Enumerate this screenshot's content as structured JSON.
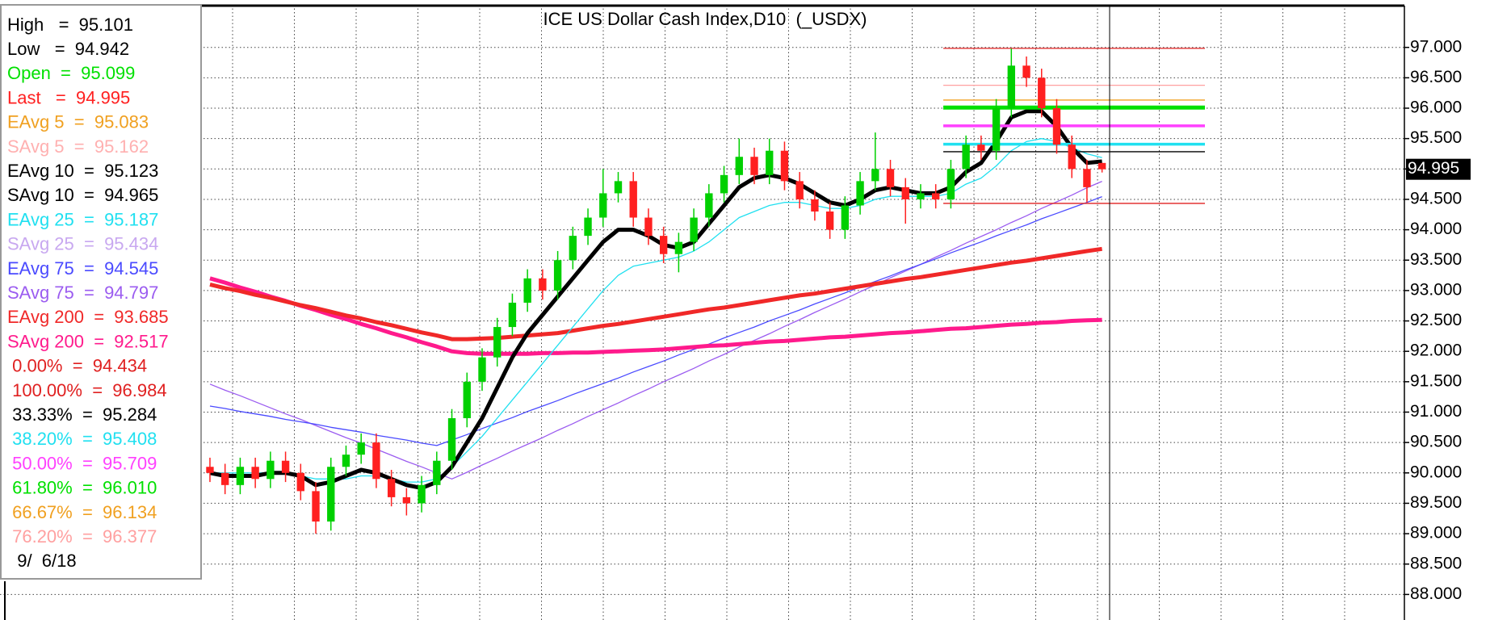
{
  "chart_data": {
    "type": "candlestick",
    "title": "ICE US Dollar Cash Index,D10  (_USDX)",
    "categories": [
      null,
      null,
      null,
      null,
      null,
      null,
      null,
      null,
      null,
      null,
      null,
      null,
      null,
      null,
      null,
      null,
      null,
      null,
      null,
      null,
      null,
      null,
      null,
      null,
      null,
      null,
      null,
      null,
      null,
      null,
      null,
      null,
      null,
      null,
      null,
      null,
      null,
      null,
      null,
      null,
      null,
      null,
      null,
      null,
      null,
      null,
      null,
      null,
      null,
      null,
      null,
      null,
      null,
      null,
      null,
      null,
      null,
      null,
      null,
      null
    ],
    "open": [
      90.1,
      90.0,
      89.8,
      90.1,
      89.9,
      90.2,
      90.0,
      89.7,
      89.2,
      90.1,
      90.3,
      90.5,
      89.9,
      89.6,
      89.5,
      89.8,
      90.2,
      90.9,
      91.5,
      91.9,
      92.4,
      92.8,
      93.2,
      93.0,
      93.5,
      93.9,
      94.2,
      94.6,
      94.8,
      94.2,
      93.9,
      93.6,
      93.8,
      94.2,
      94.6,
      94.9,
      95.2,
      94.9,
      95.3,
      94.8,
      94.5,
      94.3,
      94.0,
      94.4,
      94.8,
      95.0,
      94.7,
      94.5,
      94.6,
      94.5,
      95.0,
      95.4,
      95.3,
      96.0,
      96.7,
      96.5,
      96.0,
      95.4,
      95.0,
      95.099
    ],
    "high": [
      90.25,
      90.15,
      90.25,
      90.25,
      90.35,
      90.35,
      90.15,
      89.85,
      90.25,
      90.45,
      90.65,
      90.65,
      90.05,
      89.75,
      89.95,
      90.35,
      91.05,
      91.65,
      92.05,
      92.55,
      92.95,
      93.35,
      93.35,
      93.65,
      94.05,
      94.35,
      95.0,
      94.95,
      94.95,
      94.35,
      94.05,
      93.95,
      94.35,
      94.75,
      95.05,
      95.5,
      95.35,
      95.5,
      95.45,
      94.95,
      94.65,
      94.45,
      94.55,
      94.95,
      95.6,
      95.15,
      94.85,
      94.75,
      94.75,
      95.15,
      95.55,
      95.55,
      96.15,
      96.98,
      96.85,
      96.65,
      96.15,
      95.55,
      95.15,
      95.101
    ],
    "low": [
      89.85,
      89.65,
      89.65,
      89.75,
      89.75,
      89.85,
      89.55,
      89.0,
      89.05,
      89.95,
      90.15,
      89.75,
      89.45,
      89.3,
      89.35,
      89.65,
      90.05,
      90.75,
      91.35,
      91.75,
      92.25,
      92.65,
      92.85,
      92.85,
      93.35,
      93.75,
      94.05,
      94.45,
      94.05,
      93.75,
      93.45,
      93.3,
      93.65,
      94.05,
      94.45,
      94.75,
      94.75,
      94.75,
      94.65,
      94.35,
      94.15,
      93.85,
      93.85,
      94.25,
      94.65,
      94.55,
      94.1,
      94.35,
      94.35,
      94.35,
      94.85,
      95.15,
      95.15,
      95.85,
      96.35,
      95.85,
      95.25,
      94.85,
      94.45,
      94.942
    ],
    "close": [
      90.0,
      89.8,
      90.1,
      89.9,
      90.2,
      90.0,
      89.7,
      89.2,
      90.1,
      90.3,
      90.5,
      89.9,
      89.6,
      89.5,
      89.8,
      90.2,
      90.9,
      91.5,
      91.9,
      92.4,
      92.8,
      93.2,
      93.0,
      93.5,
      93.9,
      94.2,
      94.6,
      94.8,
      94.2,
      93.9,
      93.6,
      93.8,
      94.2,
      94.6,
      94.9,
      95.2,
      94.9,
      95.3,
      94.8,
      94.5,
      94.3,
      94.0,
      94.4,
      94.8,
      95.0,
      94.7,
      94.5,
      94.6,
      94.5,
      95.0,
      95.4,
      95.3,
      96.0,
      96.7,
      96.5,
      96.0,
      95.4,
      95.0,
      94.7,
      94.995
    ],
    "up_color": "#00d000",
    "down_color": "#ff2020",
    "series": [
      {
        "color": "#9b5cf0",
        "line_width": "thin",
        "values": [
          91.46,
          91.36,
          91.27,
          91.17,
          91.07,
          90.97,
          90.88,
          90.78,
          90.68,
          90.58,
          90.49,
          90.39,
          90.29,
          90.19,
          90.1,
          90.0,
          89.9,
          90.01,
          90.13,
          90.24,
          90.36,
          90.47,
          90.58,
          90.7,
          90.81,
          90.93,
          91.04,
          91.15,
          91.27,
          91.38,
          91.5,
          91.61,
          91.72,
          91.84,
          91.95,
          92.07,
          92.18,
          92.29,
          92.41,
          92.52,
          92.64,
          92.75,
          92.86,
          92.98,
          93.09,
          93.21,
          93.32,
          93.43,
          93.55,
          93.66,
          93.78,
          93.89,
          94.0,
          94.12,
          94.23,
          94.35,
          94.46,
          94.57,
          94.69,
          94.797
        ]
      },
      {
        "color": "#4a4aff",
        "line_width": "thin",
        "values": [
          91.1,
          91.06,
          91.01,
          90.97,
          90.93,
          90.88,
          90.84,
          90.8,
          90.75,
          90.71,
          90.67,
          90.62,
          90.58,
          90.54,
          90.49,
          90.45,
          90.54,
          90.63,
          90.73,
          90.82,
          90.91,
          91.01,
          91.1,
          91.19,
          91.29,
          91.38,
          91.47,
          91.56,
          91.66,
          91.75,
          91.84,
          91.94,
          92.03,
          92.12,
          92.22,
          92.31,
          92.4,
          92.5,
          92.59,
          92.68,
          92.78,
          92.87,
          92.96,
          93.06,
          93.15,
          93.24,
          93.34,
          93.43,
          93.52,
          93.62,
          93.71,
          93.8,
          93.9,
          93.99,
          94.08,
          94.18,
          94.27,
          94.36,
          94.45,
          94.545
        ]
      },
      {
        "color": "#ff1a8c",
        "line_width": "heavy",
        "values": [
          93.2,
          93.13,
          93.05,
          92.98,
          92.9,
          92.83,
          92.75,
          92.68,
          92.6,
          92.53,
          92.45,
          92.38,
          92.3,
          92.23,
          92.15,
          92.08,
          92.0,
          91.97,
          91.96,
          91.96,
          91.96,
          91.96,
          91.97,
          91.97,
          91.98,
          91.98,
          91.99,
          92.0,
          92.01,
          92.02,
          92.03,
          92.05,
          92.07,
          92.09,
          92.1,
          92.12,
          92.14,
          92.16,
          92.17,
          92.19,
          92.21,
          92.23,
          92.24,
          92.26,
          92.28,
          92.3,
          92.31,
          92.33,
          92.35,
          92.37,
          92.38,
          92.4,
          92.42,
          92.44,
          92.45,
          92.47,
          92.48,
          92.5,
          92.51,
          92.517
        ]
      },
      {
        "color": "#f02828",
        "line_width": "heavy",
        "values": [
          93.1,
          93.04,
          92.99,
          92.93,
          92.88,
          92.82,
          92.76,
          92.71,
          92.65,
          92.59,
          92.54,
          92.48,
          92.43,
          92.37,
          92.31,
          92.26,
          92.2,
          92.2,
          92.21,
          92.22,
          92.24,
          92.26,
          92.28,
          92.3,
          92.34,
          92.38,
          92.42,
          92.45,
          92.49,
          92.53,
          92.57,
          92.61,
          92.65,
          92.69,
          92.72,
          92.76,
          92.8,
          92.84,
          92.88,
          92.92,
          92.95,
          92.99,
          93.03,
          93.07,
          93.11,
          93.15,
          93.19,
          93.22,
          93.26,
          93.3,
          93.34,
          93.38,
          93.42,
          93.46,
          93.49,
          93.53,
          93.57,
          93.61,
          93.65,
          93.685
        ]
      },
      {
        "color": "#20e0f0",
        "line_width": "thin",
        "values": [
          90.0,
          90.0,
          90.0,
          90.0,
          90.0,
          90.0,
          89.95,
          89.9,
          89.9,
          89.9,
          89.95,
          89.95,
          89.9,
          89.85,
          89.85,
          89.9,
          90.1,
          90.35,
          90.6,
          90.9,
          91.2,
          91.5,
          91.8,
          92.1,
          92.4,
          92.7,
          93.0,
          93.25,
          93.4,
          93.45,
          93.5,
          93.55,
          93.65,
          93.8,
          94.0,
          94.2,
          94.3,
          94.4,
          94.45,
          94.45,
          94.4,
          94.35,
          94.35,
          94.4,
          94.5,
          94.55,
          94.55,
          94.55,
          94.55,
          94.6,
          94.75,
          94.85,
          95.05,
          95.3,
          95.45,
          95.5,
          95.45,
          95.35,
          95.25,
          95.187
        ]
      },
      {
        "color": "#000000",
        "line_width": "heavy",
        "values": [
          90.0,
          89.95,
          89.95,
          89.95,
          90.0,
          90.0,
          89.95,
          89.8,
          89.85,
          89.95,
          90.05,
          90.0,
          89.9,
          89.8,
          89.75,
          89.85,
          90.1,
          90.5,
          90.9,
          91.4,
          91.9,
          92.3,
          92.6,
          92.9,
          93.2,
          93.5,
          93.8,
          94.0,
          94.0,
          93.9,
          93.75,
          93.7,
          93.8,
          94.1,
          94.4,
          94.7,
          94.85,
          94.9,
          94.85,
          94.75,
          94.6,
          94.45,
          94.4,
          94.5,
          94.65,
          94.7,
          94.65,
          94.6,
          94.6,
          94.7,
          94.95,
          95.1,
          95.45,
          95.85,
          95.95,
          95.95,
          95.7,
          95.35,
          95.1,
          95.123
        ]
      }
    ],
    "fib_levels": [
      {
        "value": 94.434,
        "color": "#e02020",
        "line_width": "thin"
      },
      {
        "value": 96.984,
        "color": "#e02020",
        "line_width": "thin"
      },
      {
        "value": 95.284,
        "color": "#000000",
        "line_width": "thin"
      },
      {
        "value": 95.408,
        "color": "#20e0f0",
        "line_width": "medium"
      },
      {
        "value": 95.709,
        "color": "#ff40ff",
        "line_width": "medium"
      },
      {
        "value": 96.01,
        "color": "#00e000",
        "line_width": "heavy"
      },
      {
        "value": 96.134,
        "color": "#f0a020",
        "line_width": "thin"
      },
      {
        "value": 96.377,
        "color": "#ffa0a0",
        "line_width": "thin"
      }
    ],
    "ylim": [
      87.58,
      97.7
    ],
    "yticks": [
      {
        "value": 88,
        "label": "88.000"
      },
      {
        "value": 88.5,
        "label": "88.500"
      },
      {
        "value": 89,
        "label": "89.000"
      },
      {
        "value": 89.5,
        "label": "89.500"
      },
      {
        "value": 90,
        "label": "90.000"
      },
      {
        "value": 90.5,
        "label": "90.500"
      },
      {
        "value": 91,
        "label": "91.000"
      },
      {
        "value": 91.5,
        "label": "91.500"
      },
      {
        "value": 92,
        "label": "92.000"
      },
      {
        "value": 92.5,
        "label": "92.500"
      },
      {
        "value": 93,
        "label": "93.000"
      },
      {
        "value": 93.5,
        "label": "93.500"
      },
      {
        "value": 94,
        "label": "94.000"
      },
      {
        "value": 94.5,
        "label": "94.500"
      },
      {
        "value": 95,
        "label": "95.000"
      },
      {
        "value": 95.5,
        "label": "95.500"
      },
      {
        "value": 96,
        "label": "96.000"
      },
      {
        "value": 96.5,
        "label": "96.500"
      },
      {
        "value": 97,
        "label": "97.000"
      }
    ],
    "grid": true,
    "legend_items": [
      {
        "text": "High   =  95.101",
        "color": "#000000"
      },
      {
        "text": "Low   =  94.942",
        "color": "#000000"
      },
      {
        "text": "Open  =  95.099",
        "color": "#00e000"
      },
      {
        "text": "Last   =  94.995",
        "color": "#ff2020"
      },
      {
        "text": "EAvg 5  =  95.083",
        "color": "#f0a020"
      },
      {
        "text": "SAvg 5  =  95.162",
        "color": "#ffb0b0"
      },
      {
        "text": "EAvg 10  =  95.123",
        "color": "#000000"
      },
      {
        "text": "SAvg 10  =  94.965",
        "color": "#000000"
      },
      {
        "text": "EAvg 25  =  95.187",
        "color": "#20e0f0"
      },
      {
        "text": "SAvg 25  =  95.434",
        "color": "#c8a8f0"
      },
      {
        "text": "EAvg 75  =  94.545",
        "color": "#4a4aff"
      },
      {
        "text": "SAvg 75  =  94.797",
        "color": "#9b5cf0"
      },
      {
        "text": "EAvg 200  =  93.685",
        "color": "#f02828"
      },
      {
        "text": "SAvg 200  =  92.517",
        "color": "#ff1a8c"
      },
      {
        "text": " 0.00%  =  94.434",
        "color": "#e02020"
      },
      {
        "text": " 100.00%  =  96.984",
        "color": "#e02020"
      },
      {
        "text": " 33.33%  =  95.284",
        "color": "#000000"
      },
      {
        "text": " 38.20%  =  95.408",
        "color": "#20e0f0"
      },
      {
        "text": " 50.00%  =  95.709",
        "color": "#ff40ff"
      },
      {
        "text": " 61.80%  =  96.010",
        "color": "#00e000"
      },
      {
        "text": " 66.67%  =  96.134",
        "color": "#f0a020"
      },
      {
        "text": " 76.20%  =  96.377",
        "color": "#ffa0a0"
      },
      {
        "text": "  9/  6/18",
        "color": "#000000"
      }
    ]
  }
}
